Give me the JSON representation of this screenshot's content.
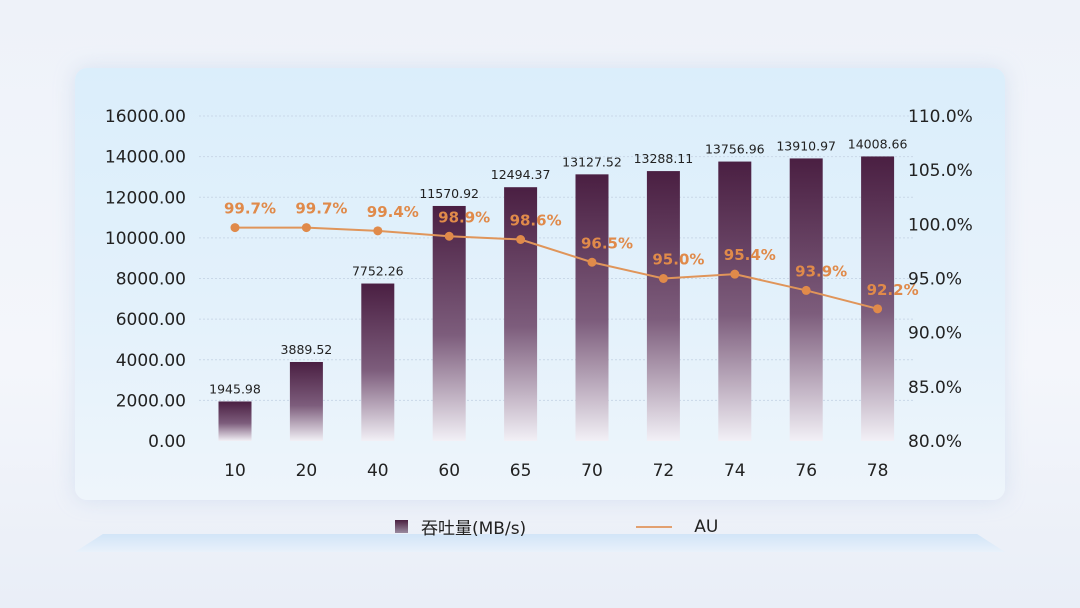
{
  "chart_data": {
    "type": "bar+line",
    "categories": [
      "10",
      "20",
      "40",
      "60",
      "65",
      "70",
      "72",
      "74",
      "76",
      "78"
    ],
    "series": [
      {
        "name": "吞吐量(MB/s)",
        "type": "bar",
        "axis": "left",
        "values": [
          1945.98,
          3889.52,
          7752.26,
          11570.92,
          12494.37,
          13127.52,
          13288.11,
          13756.96,
          13910.97,
          14008.66
        ],
        "labels": [
          "1945.98",
          "3889.52",
          "7752.26",
          "11570.92",
          "12494.37",
          "13127.52",
          "13288.11",
          "13756.96",
          "13910.97",
          "14008.66"
        ]
      },
      {
        "name": "AU",
        "type": "line",
        "axis": "right",
        "values": [
          99.7,
          99.7,
          99.4,
          98.9,
          98.6,
          96.5,
          95.0,
          95.4,
          93.9,
          92.2
        ],
        "labels": [
          "99.7%",
          "99.7%",
          "99.4%",
          "98.9%",
          "98.6%",
          "96.5%",
          "95.0%",
          "95.4%",
          "93.9%",
          "92.2%"
        ]
      }
    ],
    "left_axis": {
      "ylim": [
        0,
        16000
      ],
      "ticks": [
        "0.00",
        "2000.00",
        "4000.00",
        "6000.00",
        "8000.00",
        "10000.00",
        "12000.00",
        "14000.00",
        "16000.00"
      ]
    },
    "right_axis": {
      "ylim": [
        80,
        110
      ],
      "ticks": [
        "80.0%",
        "85.0%",
        "90.0%",
        "95.0%",
        "100.0%",
        "105.0%",
        "110.0%"
      ]
    },
    "grid": true,
    "legend_position": "bottom",
    "colors": {
      "bar_top": "#4a1f42",
      "bar_bottom": "#f0eef5",
      "line": "#e08a4a"
    }
  }
}
